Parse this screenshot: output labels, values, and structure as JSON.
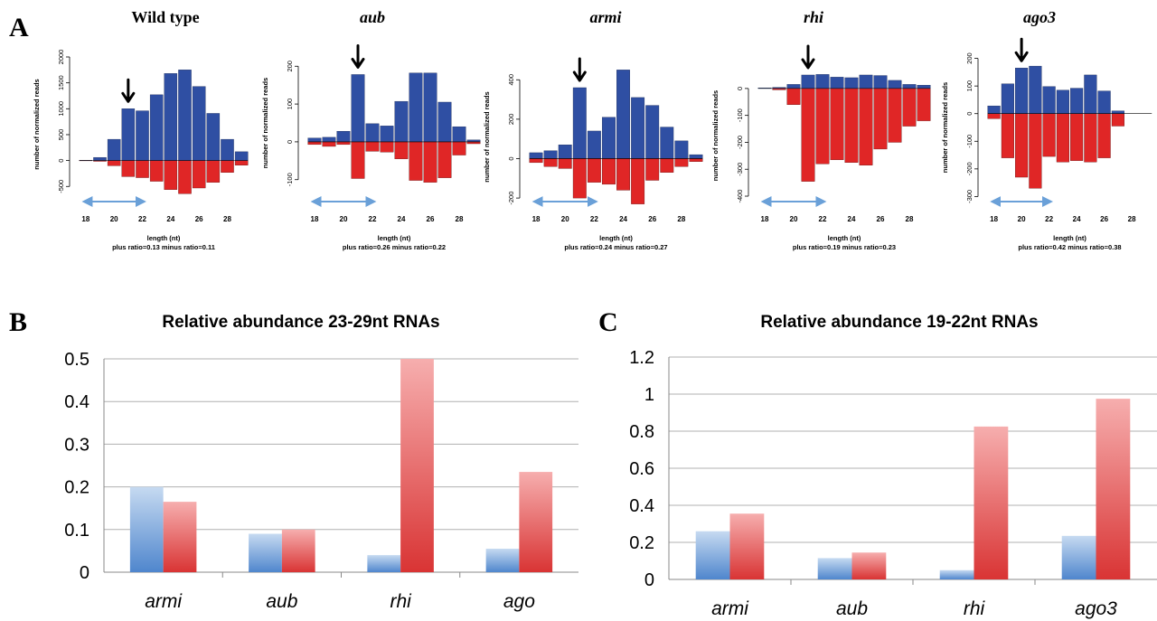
{
  "panel_labels": {
    "a": "A",
    "b": "B",
    "c": "C"
  },
  "colors": {
    "plus": "#2f4fa3",
    "minus": "#e02626",
    "arrow": "#6aa0d8"
  },
  "chart_data": [
    {
      "panel": "A",
      "type": "bar",
      "title": "Wild type",
      "title_italic": false,
      "ylabel": "number of normalized reads",
      "xlabel": "length (nt)",
      "ratio_text": "plus ratio=0.13     minus ratio=0.11",
      "ylim": [
        -600,
        2000
      ],
      "yticks": [
        -500,
        0,
        500,
        1000,
        1500,
        2000
      ],
      "x": [
        18,
        19,
        20,
        21,
        22,
        23,
        24,
        25,
        26,
        27,
        28,
        29
      ],
      "xtick_labels": [
        "18",
        "20",
        "22",
        "24",
        "26",
        "28"
      ],
      "plus": [
        5,
        60,
        410,
        1000,
        960,
        1270,
        1680,
        1750,
        1430,
        910,
        410,
        170
      ],
      "minus": [
        -5,
        -15,
        -100,
        -310,
        -330,
        -400,
        -560,
        -640,
        -530,
        -420,
        -230,
        -90
      ],
      "arrow_at": 21
    },
    {
      "panel": "A",
      "type": "bar",
      "title": "aub",
      "title_italic": true,
      "ylabel": "number of normalized reads",
      "xlabel": "length (nt)",
      "ratio_text": "plus ratio=0.26     minus ratio=0.22",
      "ylim": [
        -115,
        215
      ],
      "yticks": [
        -100,
        0,
        100,
        200
      ],
      "x": [
        18,
        19,
        20,
        21,
        22,
        23,
        24,
        25,
        26,
        27,
        28,
        29
      ],
      "xtick_labels": [
        "18",
        "20",
        "22",
        "24",
        "26",
        "28"
      ],
      "plus": [
        10,
        12,
        28,
        178,
        48,
        42,
        107,
        182,
        182,
        105,
        40,
        5
      ],
      "minus": [
        -7,
        -12,
        -7,
        -97,
        -25,
        -27,
        -45,
        -102,
        -107,
        -95,
        -35,
        -5
      ],
      "arrow_at": 21
    },
    {
      "panel": "A",
      "type": "bar",
      "title": "armi",
      "title_italic": true,
      "ylabel": "number of normalized reads",
      "xlabel": "length (nt)",
      "ratio_text": "plus ratio=0.24     minus ratio=0.27",
      "ylim": [
        -250,
        470
      ],
      "yticks": [
        -200,
        0,
        200,
        400
      ],
      "x": [
        18,
        19,
        20,
        21,
        22,
        23,
        24,
        25,
        26,
        27,
        28,
        29
      ],
      "xtick_labels": [
        "18",
        "20",
        "22",
        "24",
        "26",
        "28"
      ],
      "plus": [
        30,
        40,
        70,
        360,
        140,
        210,
        450,
        310,
        270,
        160,
        90,
        20
      ],
      "minus": [
        -20,
        -40,
        -50,
        -200,
        -120,
        -130,
        -160,
        -230,
        -110,
        -70,
        -40,
        -15
      ],
      "arrow_at": 21
    },
    {
      "panel": "A",
      "type": "bar",
      "title": "rhi",
      "title_italic": true,
      "ylabel": "number of normalized reads",
      "xlabel": "length (nt)",
      "ratio_text": "plus ratio=0.19     minus ratio=0.23",
      "ylim": [
        -410,
        60
      ],
      "yticks": [
        -400,
        -300,
        -200,
        -100,
        0
      ],
      "x": [
        18,
        19,
        20,
        21,
        22,
        23,
        24,
        25,
        26,
        27,
        28,
        29
      ],
      "xtick_labels": [
        "18",
        "20",
        "22",
        "24",
        "26",
        "28"
      ],
      "plus": [
        2,
        4,
        15,
        50,
        52,
        42,
        40,
        50,
        48,
        30,
        15,
        12
      ],
      "minus": [
        0,
        -5,
        -60,
        -345,
        -280,
        -265,
        -275,
        -285,
        -225,
        -200,
        -140,
        -120
      ],
      "arrow_at": 21
    },
    {
      "panel": "A",
      "type": "bar",
      "title": "ago3",
      "title_italic": true,
      "ylabel": "number of normalized reads",
      "xlabel": "length (nt)",
      "ratio_text": "plus ratio=0.42     minus ratio=0.38",
      "ylim": [
        -315,
        215
      ],
      "yticks": [
        -300,
        -200,
        -100,
        0,
        100,
        200
      ],
      "x": [
        18,
        19,
        20,
        21,
        22,
        23,
        24,
        25,
        26,
        27,
        28,
        29
      ],
      "xtick_labels": [
        "18",
        "20",
        "22",
        "24",
        "26",
        "28"
      ],
      "plus": [
        28,
        108,
        165,
        172,
        98,
        85,
        92,
        140,
        82,
        10,
        0,
        0
      ],
      "minus": [
        -18,
        -160,
        -230,
        -270,
        -155,
        -175,
        -170,
        -175,
        -160,
        -45,
        0,
        0
      ],
      "arrow_at": 20
    },
    {
      "panel": "B",
      "type": "bar",
      "title": "Relative abundance 23-29nt RNAs",
      "categories": [
        "armi",
        "aub",
        "rhi",
        "ago"
      ],
      "series": [
        {
          "values": [
            0.2,
            0.09,
            0.04,
            0.055
          ]
        },
        {
          "values": [
            0.165,
            0.1,
            0.5,
            0.235
          ]
        }
      ],
      "ylim": [
        0,
        0.5
      ],
      "yticks": [
        "0",
        "0.1",
        "0.2",
        "0.3",
        "0.4",
        "0.5"
      ],
      "grid": true
    },
    {
      "panel": "C",
      "type": "bar",
      "title": "Relative abundance 19-22nt RNAs",
      "categories": [
        "armi",
        "aub",
        "rhi",
        "ago3"
      ],
      "series": [
        {
          "values": [
            0.26,
            0.115,
            0.05,
            0.235
          ]
        },
        {
          "values": [
            0.355,
            0.145,
            0.825,
            0.975
          ]
        }
      ],
      "ylim": [
        0,
        1.2
      ],
      "yticks": [
        "0",
        "0.2",
        "0.4",
        "0.6",
        "0.8",
        "1",
        "1.2"
      ],
      "grid": true
    }
  ]
}
